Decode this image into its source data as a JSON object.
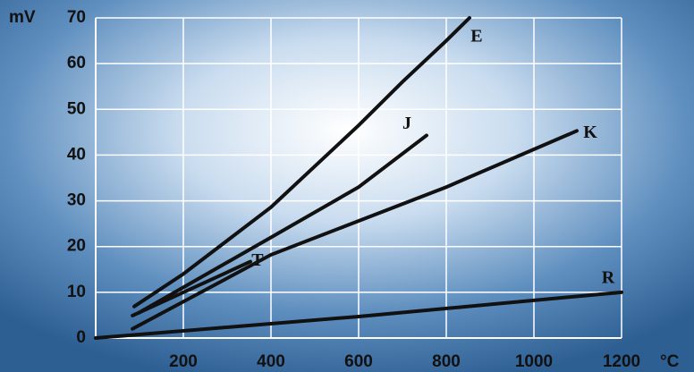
{
  "chart_data": {
    "type": "line",
    "y_label": "mV",
    "x_label": "°C",
    "xlim": [
      0,
      1200
    ],
    "ylim": [
      0,
      70
    ],
    "xticks": [
      200,
      400,
      600,
      800,
      1000,
      1200
    ],
    "yticks": [
      0,
      10,
      20,
      30,
      40,
      50,
      60,
      70
    ],
    "grid": true,
    "series": [
      {
        "name": "E",
        "color": "#111111",
        "x": [
          88,
          200,
          400,
          600,
          700,
          800,
          853
        ],
        "values": [
          6.9,
          14,
          28.6,
          46.5,
          56,
          65,
          70
        ]
      },
      {
        "name": "J",
        "color": "#111111",
        "x": [
          98,
          400,
          600,
          755
        ],
        "values": [
          5.5,
          22,
          33,
          44.3
        ]
      },
      {
        "name": "T",
        "color": "#111111",
        "x": [
          84,
          353
        ],
        "values": [
          4.9,
          16.7
        ]
      },
      {
        "name": "K",
        "color": "#111111",
        "x": [
          84,
          400,
          800,
          1098
        ],
        "values": [
          2,
          18.2,
          33,
          45.3
        ]
      },
      {
        "name": "R",
        "color": "#111111",
        "x": [
          0,
          600,
          1200
        ],
        "values": [
          0,
          4.7,
          10
        ]
      }
    ]
  }
}
